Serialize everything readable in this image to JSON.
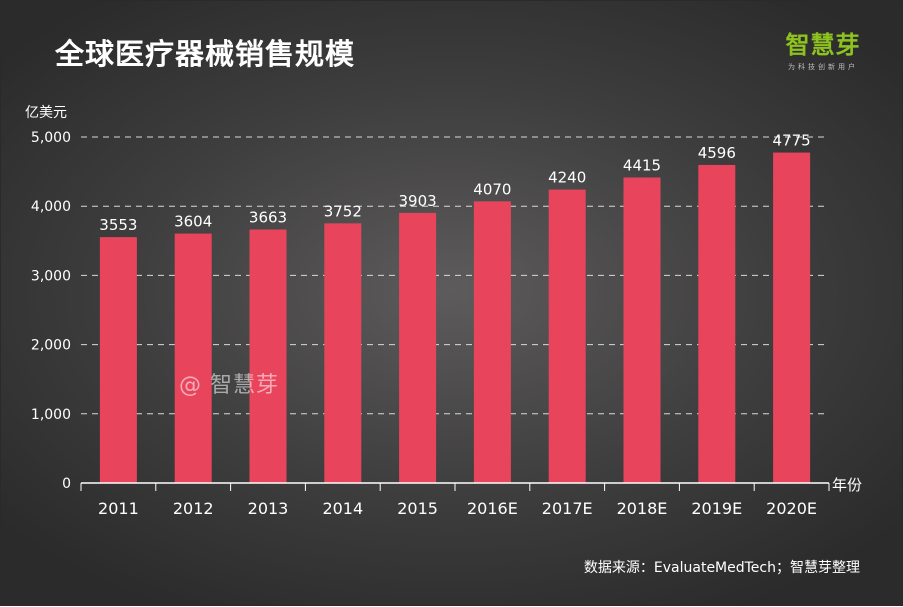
{
  "title": "全球医疗器械销售规模",
  "logo": {
    "name": "智慧芽",
    "tagline": "为科技创新用户"
  },
  "watermark": "@ 智慧芽",
  "source": "数据来源：EvaluateMedTech；智慧芽整理",
  "colors": {
    "bar": "#e8455d",
    "text": "#ffffff",
    "grid": "#d9d9d9",
    "logo": "#8dc21f"
  },
  "chart_data": {
    "type": "bar",
    "title": "全球医疗器械销售规模",
    "xlabel": "年份",
    "ylabel": "亿美元",
    "ylim": [
      0,
      5000
    ],
    "yticks": [
      0,
      1000,
      2000,
      3000,
      4000,
      5000
    ],
    "ytick_labels": [
      "0",
      "1,000",
      "2,000",
      "3,000",
      "4,000",
      "5,000"
    ],
    "grid": true,
    "categories": [
      "2011",
      "2012",
      "2013",
      "2014",
      "2015",
      "2016E",
      "2017E",
      "2018E",
      "2019E",
      "2020E"
    ],
    "values": [
      3553,
      3604,
      3663,
      3752,
      3903,
      4070,
      4240,
      4415,
      4596,
      4775
    ]
  }
}
